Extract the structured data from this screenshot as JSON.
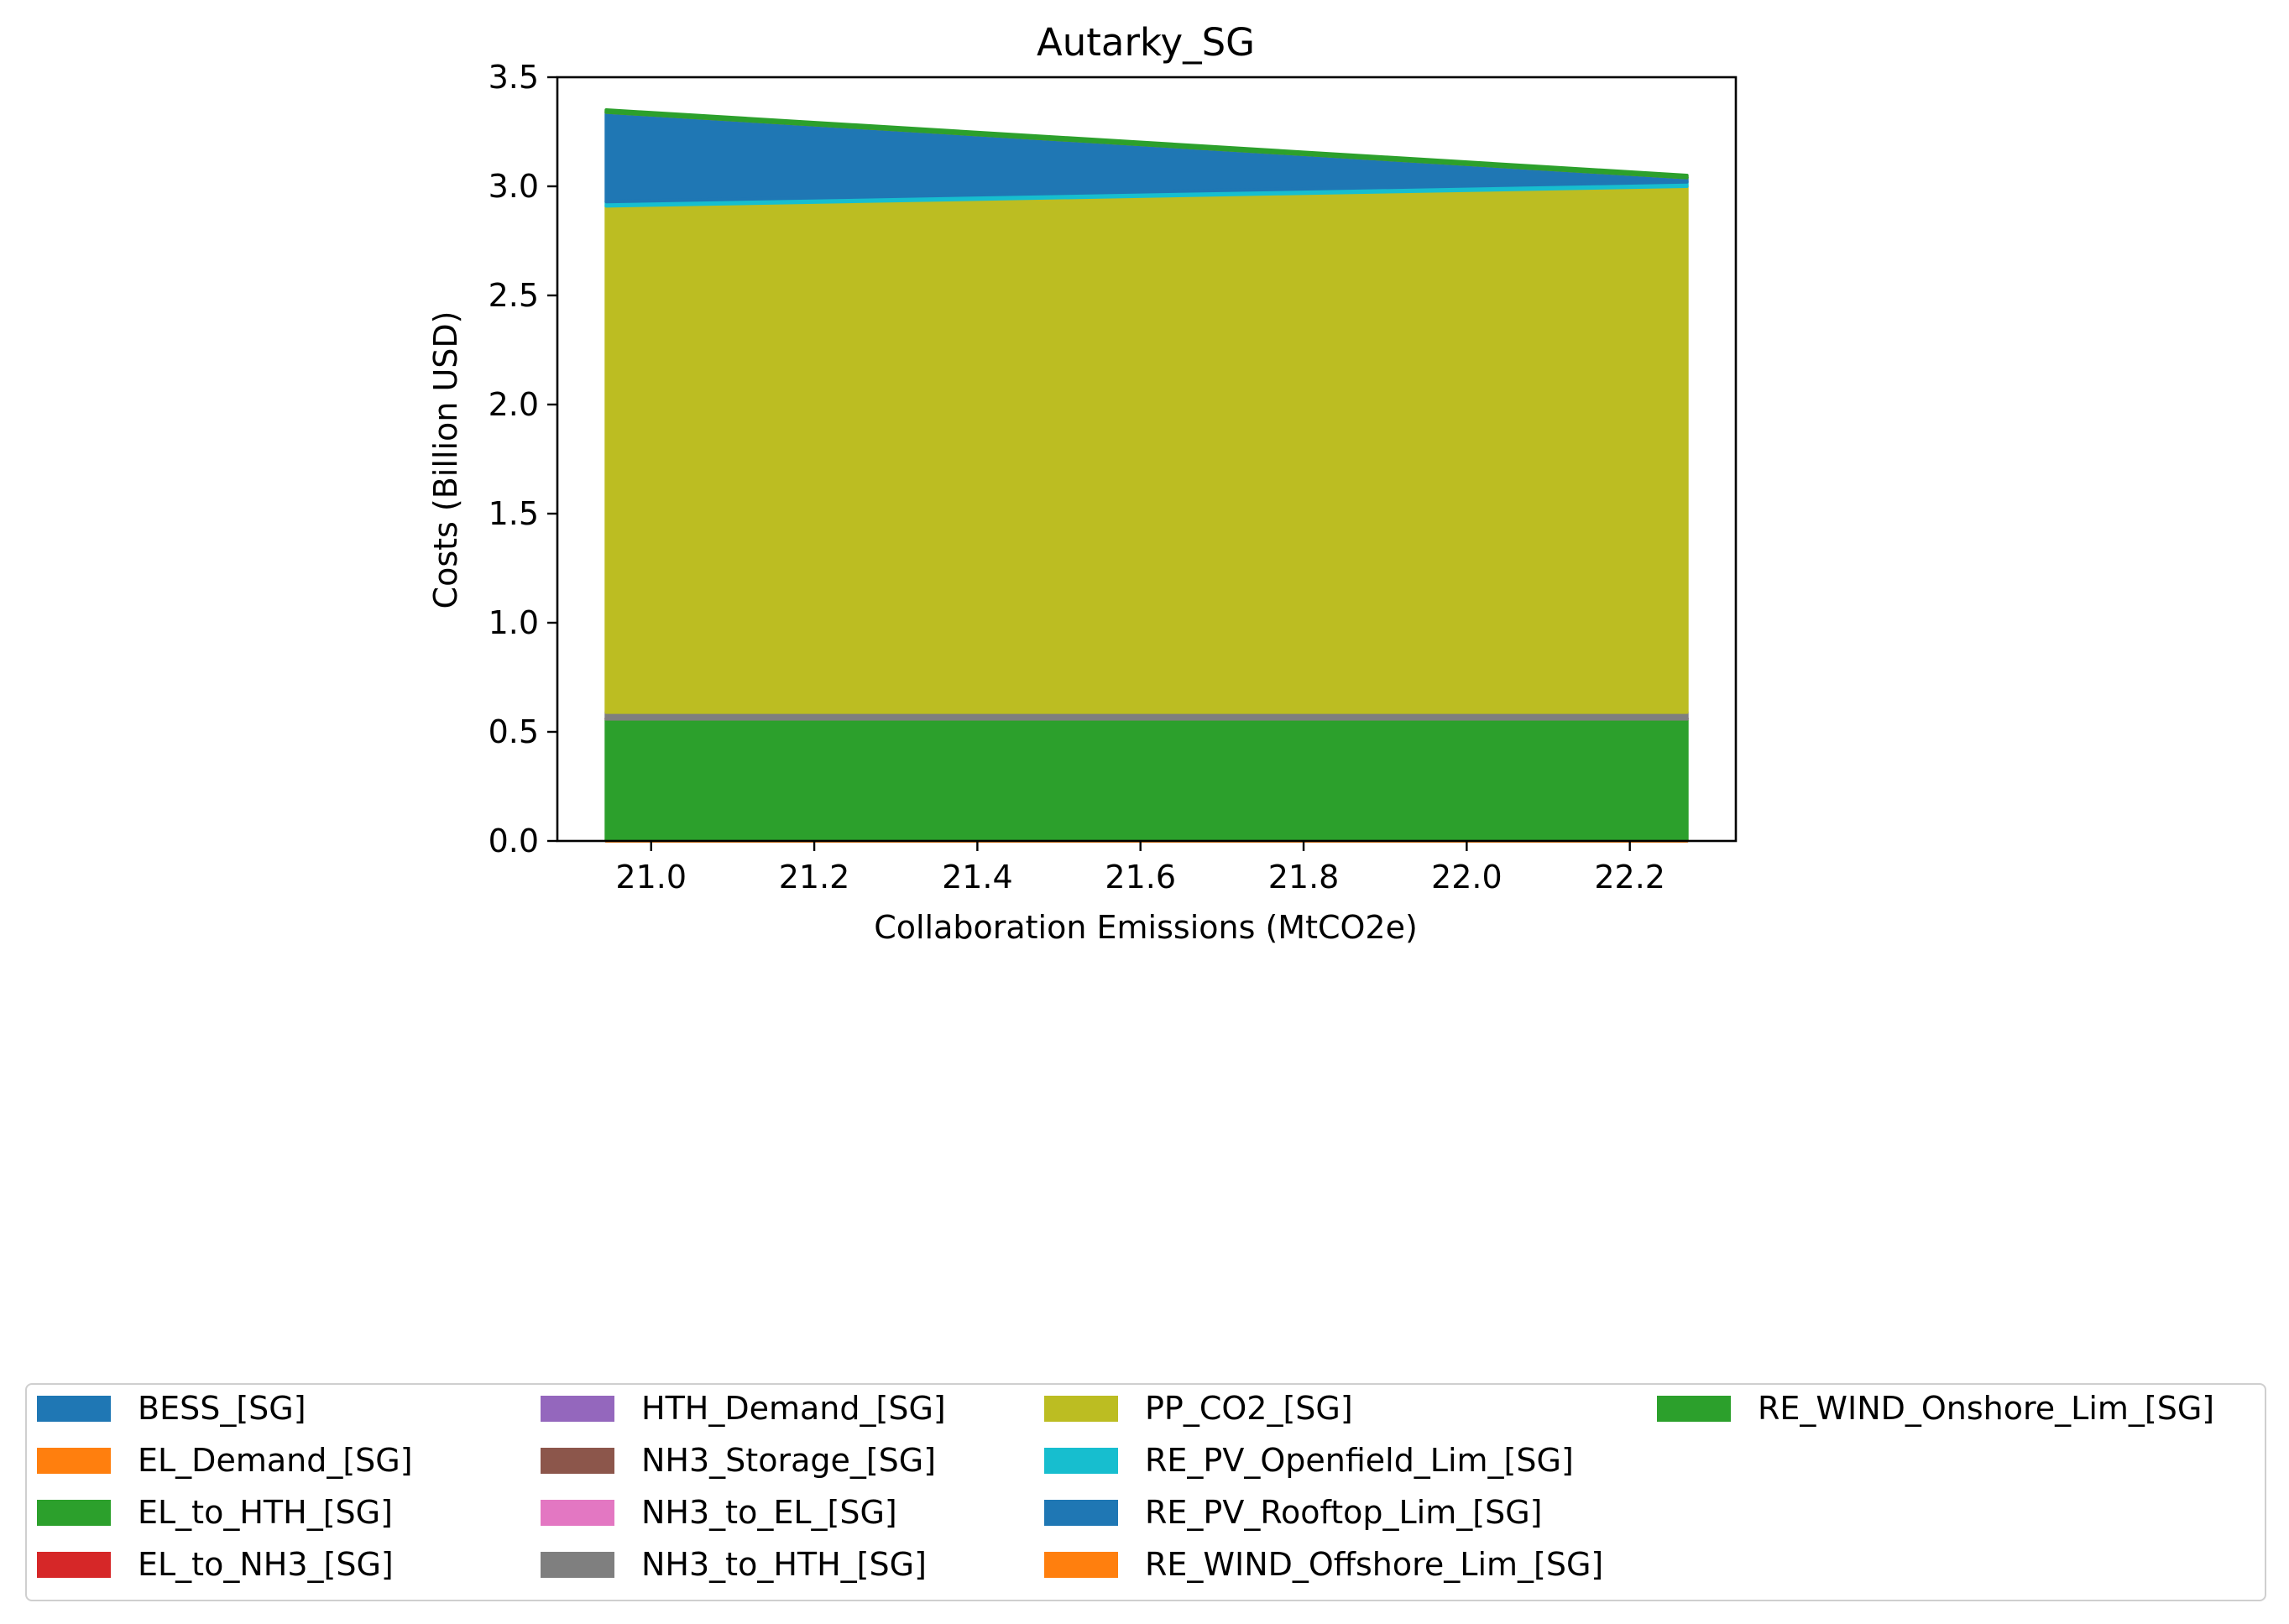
{
  "chart_data": {
    "type": "area",
    "title": "Autarky_SG",
    "xlabel": "Collaboration Emissions (MtCO2e)",
    "ylabel": "Costs (Billion USD)",
    "xlim": [
      20.885,
      22.33
    ],
    "ylim": [
      0,
      3.5
    ],
    "xticks": [
      "21.0",
      "21.2",
      "21.4",
      "21.6",
      "21.8",
      "22.0",
      "22.2"
    ],
    "xtick_values": [
      21.0,
      21.2,
      21.4,
      21.6,
      21.8,
      22.0,
      22.2
    ],
    "yticks": [
      "0.0",
      "0.5",
      "1.0",
      "1.5",
      "2.0",
      "2.5",
      "3.0",
      "3.5"
    ],
    "ytick_values": [
      0.0,
      0.5,
      1.0,
      1.5,
      2.0,
      2.5,
      3.0,
      3.5
    ],
    "grid": false,
    "legend_position": "bottom",
    "x": [
      20.945,
      22.27
    ],
    "series": [
      {
        "name": "BESS_[SG]",
        "color": "#1f77b4",
        "values": [
          0,
          0
        ]
      },
      {
        "name": "EL_Demand_[SG]",
        "color": "#ff7f0e",
        "values": [
          0.005,
          0.005
        ]
      },
      {
        "name": "EL_to_HTH_[SG]",
        "color": "#2ca02c",
        "values": [
          0.555,
          0.555
        ]
      },
      {
        "name": "EL_to_NH3_[SG]",
        "color": "#d62728",
        "values": [
          0,
          0
        ]
      },
      {
        "name": "HTH_Demand_[SG]",
        "color": "#9467bd",
        "values": [
          0,
          0
        ]
      },
      {
        "name": "NH3_Storage_[SG]",
        "color": "#8c564b",
        "values": [
          0,
          0
        ]
      },
      {
        "name": "NH3_to_EL_[SG]",
        "color": "#e377c2",
        "values": [
          0,
          0
        ]
      },
      {
        "name": "NH3_to_HTH_[SG]",
        "color": "#7f7f7f",
        "values": [
          0.03,
          0.03
        ]
      },
      {
        "name": "PP_CO2_[SG]",
        "color": "#bcbd22",
        "values": [
          2.32,
          2.41
        ]
      },
      {
        "name": "RE_PV_Openfield_Lim_[SG]",
        "color": "#17becf",
        "values": [
          0.02,
          0.02
        ]
      },
      {
        "name": "RE_PV_Rooftop_Lim_[SG]",
        "color": "#1f77b4",
        "values": [
          0.41,
          0.02
        ]
      },
      {
        "name": "RE_WIND_Offshore_Lim_[SG]",
        "color": "#ff7f0e",
        "values": [
          0,
          0
        ]
      },
      {
        "name": "RE_WIND_Onshore_Lim_[SG]",
        "color": "#2ca02c",
        "values": [
          0.01,
          0.01
        ]
      }
    ]
  }
}
